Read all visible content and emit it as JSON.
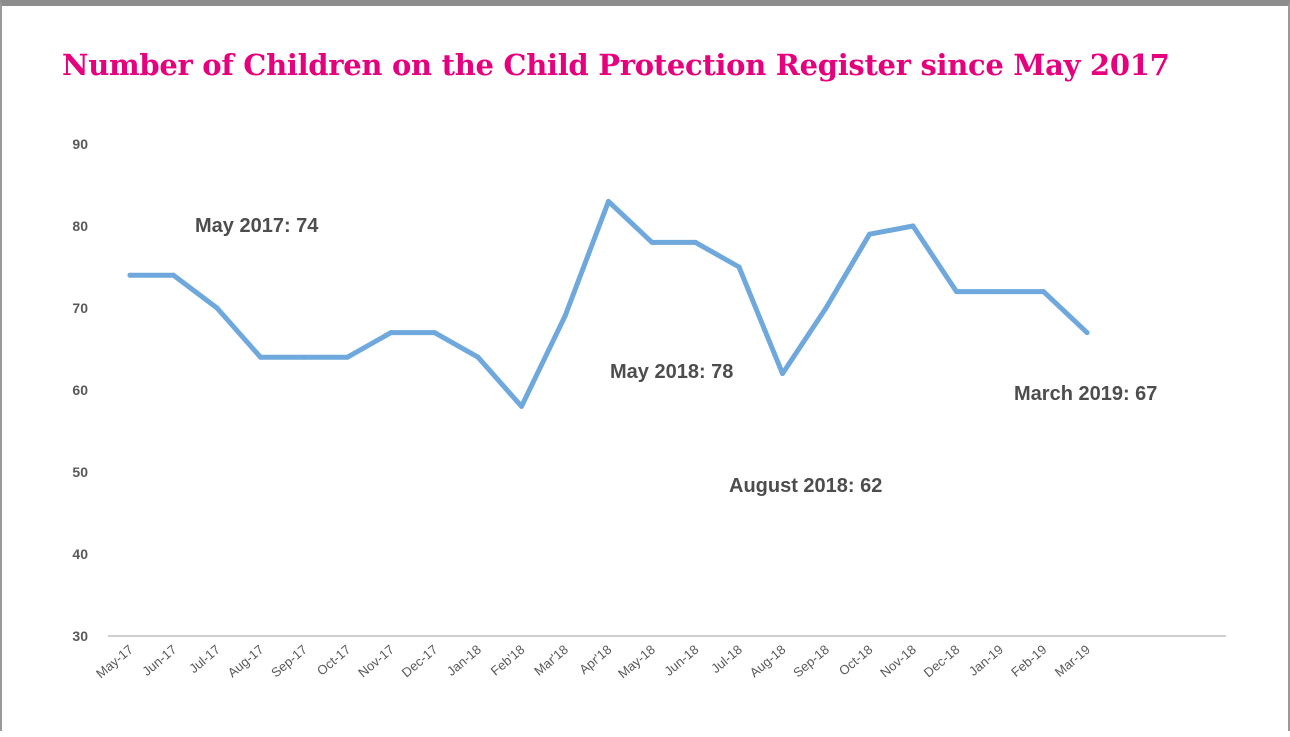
{
  "chart_data": {
    "type": "line",
    "title": "Number of Children on the Child Protection Register since May 2017",
    "xlabel": "",
    "ylabel": "",
    "ylim": [
      30,
      90
    ],
    "yticks": [
      30,
      40,
      50,
      60,
      70,
      80,
      90
    ],
    "grid": false,
    "legend": "none",
    "categories": [
      "May-17",
      "Jun-17",
      "Jul-17",
      "Aug-17",
      "Sep-17",
      "Oct-17",
      "Nov-17",
      "Dec-17",
      "Jan-18",
      "Feb'18",
      "Mar'18",
      "Apr'18",
      "May-18",
      "Jun-18",
      "Jul-18",
      "Aug-18",
      "Sep-18",
      "Oct-18",
      "Nov-18",
      "Dec-18",
      "Jan-19",
      "Feb-19",
      "Mar-19"
    ],
    "series": [
      {
        "values": [
          74,
          74,
          70,
          64,
          64,
          64,
          67,
          67,
          64,
          58,
          69,
          83,
          78,
          78,
          75,
          62,
          70,
          79,
          80,
          72,
          72,
          72,
          67
        ],
        "color": "#6fa8dc"
      }
    ],
    "annotations": [
      {
        "text": "May 2017: 74"
      },
      {
        "text": "May 2018: 78"
      },
      {
        "text": "August 2018: 62"
      },
      {
        "text": "March 2019: 67"
      }
    ]
  }
}
